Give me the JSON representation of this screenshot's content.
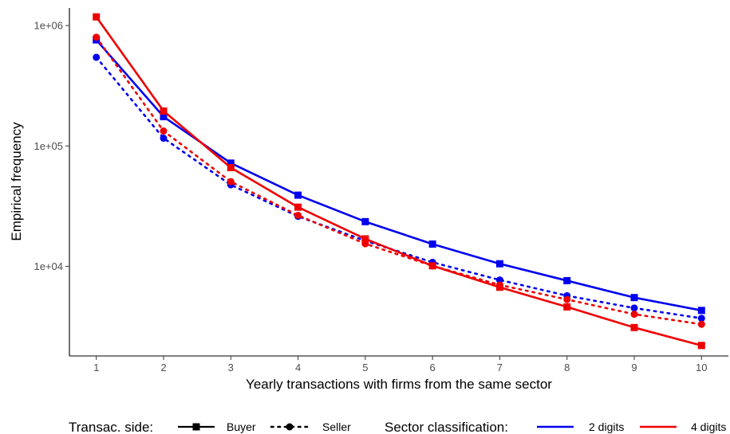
{
  "chart_data": {
    "type": "line",
    "title": "",
    "xlabel": "Yearly transactions with firms from the same sector",
    "ylabel": "Empirical frequency",
    "x": [
      1,
      2,
      3,
      4,
      5,
      6,
      7,
      8,
      9,
      10
    ],
    "xlim": [
      0.6,
      10.4
    ],
    "ylim": [
      1800,
      1400000
    ],
    "y_scale": "log10",
    "x_ticks": [
      "1",
      "2",
      "3",
      "4",
      "5",
      "6",
      "7",
      "8",
      "9",
      "10"
    ],
    "y_ticks": [
      {
        "value": 10000,
        "label": "1e+04"
      },
      {
        "value": 100000,
        "label": "1e+05"
      },
      {
        "value": 1000000,
        "label": "1e+06"
      }
    ],
    "grid": false,
    "legend_position": "bottom",
    "colors": {
      "2 digits": "#0000ee",
      "4 digits": "#ee0000"
    },
    "series": [
      {
        "side": "Buyer",
        "classification": "2 digits",
        "linetype": "solid",
        "marker": "square",
        "values": [
          760000,
          175000,
          72000,
          39000,
          23500,
          15300,
          10500,
          7600,
          5500,
          4300
        ]
      },
      {
        "side": "Seller",
        "classification": "2 digits",
        "linetype": "dotted",
        "marker": "circle",
        "values": [
          545000,
          116000,
          47500,
          26000,
          16300,
          10800,
          7700,
          5700,
          4500,
          3700
        ]
      },
      {
        "side": "Buyer",
        "classification": "4 digits",
        "linetype": "solid",
        "marker": "square",
        "values": [
          1180000,
          195000,
          66000,
          31000,
          16900,
          10100,
          6700,
          4600,
          3100,
          2200
        ]
      },
      {
        "side": "Seller",
        "classification": "4 digits",
        "linetype": "dotted",
        "marker": "circle",
        "values": [
          800000,
          133000,
          50500,
          26500,
          15400,
          10100,
          7000,
          5300,
          4000,
          3300
        ]
      }
    ]
  },
  "legend": {
    "side_title": "Transac. side:",
    "side_items": [
      {
        "label": "Buyer",
        "linetype": "solid",
        "marker": "square"
      },
      {
        "label": "Seller",
        "linetype": "dotted",
        "marker": "circle"
      }
    ],
    "class_title": "Sector classification:",
    "class_items": [
      {
        "label": "2 digits",
        "color": "#0000ee"
      },
      {
        "label": "4 digits",
        "color": "#ee0000"
      }
    ]
  }
}
